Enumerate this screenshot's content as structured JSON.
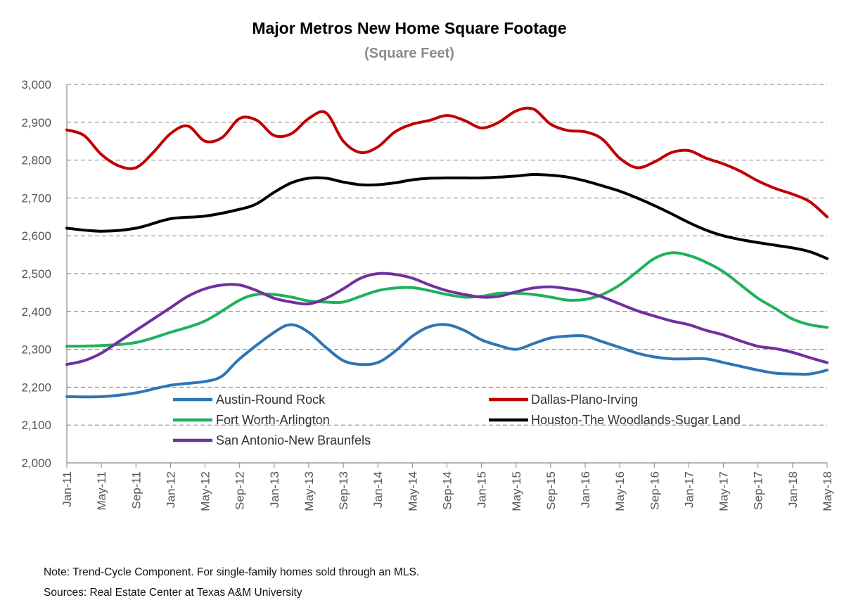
{
  "chart_data": {
    "type": "line",
    "title": "Major Metros New Home Square Footage",
    "subtitle": "(Square Feet)",
    "xlabel": "",
    "ylabel": "",
    "ylim": [
      2000,
      3000
    ],
    "yticks": [
      2000,
      2100,
      2200,
      2300,
      2400,
      2500,
      2600,
      2700,
      2800,
      2900,
      3000
    ],
    "ytick_labels": [
      "2,000",
      "2,100",
      "2,200",
      "2,300",
      "2,400",
      "2,500",
      "2,600",
      "2,700",
      "2,800",
      "2,900",
      "3,000"
    ],
    "x_tick_labels": [
      "Jan-11",
      "May-11",
      "Sep-11",
      "Jan-12",
      "May-12",
      "Sep-12",
      "Jan-13",
      "May-13",
      "Sep-13",
      "Jan-14",
      "May-14",
      "Sep-14",
      "Jan-15",
      "May-15",
      "Sep-15",
      "Jan-16",
      "May-16",
      "Sep-16",
      "Jan-17",
      "May-17",
      "Sep-17",
      "Jan-18",
      "May-18"
    ],
    "grid": "horizontal dashed",
    "legend_position": "bottom-center inside plot",
    "series": [
      {
        "name": "Austin-Round Rock",
        "color": "#2e75b6",
        "x": [
          "Jan-11",
          "May-11",
          "Sep-11",
          "Jan-12",
          "May-12",
          "Jul-12",
          "Sep-12",
          "Jan-13",
          "Mar-13",
          "May-13",
          "Jul-13",
          "Sep-13",
          "Nov-13",
          "Jan-14",
          "Mar-14",
          "May-14",
          "Jul-14",
          "Sep-14",
          "Nov-14",
          "Jan-15",
          "Mar-15",
          "May-15",
          "Jul-15",
          "Sep-15",
          "Nov-15",
          "Jan-16",
          "Mar-16",
          "May-16",
          "Jul-16",
          "Sep-16",
          "Nov-16",
          "Jan-17",
          "Mar-17",
          "May-17",
          "Jul-17",
          "Sep-17",
          "Nov-17",
          "Jan-18",
          "Mar-18",
          "May-18"
        ],
        "values": [
          2175,
          2175,
          2185,
          2205,
          2215,
          2230,
          2275,
          2345,
          2365,
          2345,
          2305,
          2270,
          2260,
          2265,
          2295,
          2335,
          2360,
          2365,
          2350,
          2325,
          2310,
          2300,
          2315,
          2330,
          2335,
          2335,
          2320,
          2305,
          2290,
          2280,
          2275,
          2275,
          2275,
          2265,
          2255,
          2245,
          2237,
          2235,
          2235,
          2245
        ]
      },
      {
        "name": "Dallas-Plano-Irving",
        "color": "#c00000",
        "x": [
          "Jan-11",
          "Mar-11",
          "May-11",
          "Jul-11",
          "Sep-11",
          "Nov-11",
          "Jan-12",
          "Mar-12",
          "May-12",
          "Jul-12",
          "Sep-12",
          "Nov-12",
          "Jan-13",
          "Mar-13",
          "May-13",
          "Jul-13",
          "Sep-13",
          "Nov-13",
          "Jan-14",
          "Mar-14",
          "May-14",
          "Jul-14",
          "Sep-14",
          "Nov-14",
          "Jan-15",
          "Mar-15",
          "May-15",
          "Jul-15",
          "Sep-15",
          "Nov-15",
          "Jan-16",
          "Mar-16",
          "May-16",
          "Jul-16",
          "Sep-16",
          "Nov-16",
          "Jan-17",
          "Mar-17",
          "May-17",
          "Jul-17",
          "Sep-17",
          "Nov-17",
          "Jan-18",
          "Mar-18",
          "May-18"
        ],
        "values": [
          2880,
          2865,
          2815,
          2785,
          2780,
          2820,
          2870,
          2890,
          2850,
          2860,
          2910,
          2905,
          2865,
          2870,
          2910,
          2925,
          2850,
          2820,
          2835,
          2875,
          2895,
          2905,
          2918,
          2905,
          2885,
          2900,
          2930,
          2935,
          2895,
          2878,
          2875,
          2855,
          2805,
          2780,
          2795,
          2820,
          2825,
          2805,
          2790,
          2770,
          2745,
          2725,
          2710,
          2690,
          2650
        ]
      },
      {
        "name": "Fort Worth-Arlington",
        "color": "#1fb25a",
        "x": [
          "Jan-11",
          "May-11",
          "Sep-11",
          "Jan-12",
          "May-12",
          "Sep-12",
          "Nov-12",
          "Jan-13",
          "Mar-13",
          "May-13",
          "Jul-13",
          "Sep-13",
          "Nov-13",
          "Jan-14",
          "Mar-14",
          "May-14",
          "Jul-14",
          "Sep-14",
          "Nov-14",
          "Jan-15",
          "Mar-15",
          "May-15",
          "Jul-15",
          "Sep-15",
          "Nov-15",
          "Jan-16",
          "Mar-16",
          "May-16",
          "Jul-16",
          "Sep-16",
          "Nov-16",
          "Jan-17",
          "Mar-17",
          "May-17",
          "Jul-17",
          "Sep-17",
          "Nov-17",
          "Jan-18",
          "Mar-18",
          "May-18"
        ],
        "values": [
          2308,
          2310,
          2318,
          2345,
          2375,
          2430,
          2445,
          2445,
          2438,
          2428,
          2425,
          2425,
          2440,
          2455,
          2462,
          2463,
          2455,
          2445,
          2438,
          2440,
          2448,
          2448,
          2445,
          2438,
          2430,
          2432,
          2445,
          2470,
          2505,
          2540,
          2555,
          2548,
          2530,
          2505,
          2470,
          2435,
          2408,
          2380,
          2365,
          2358
        ]
      },
      {
        "name": "Houston-The Woodlands-Sugar Land",
        "color": "#000000",
        "x": [
          "Jan-11",
          "May-11",
          "Sep-11",
          "Jan-12",
          "May-12",
          "Sep-12",
          "Nov-12",
          "Jan-13",
          "Mar-13",
          "May-13",
          "Jul-13",
          "Sep-13",
          "Nov-13",
          "Jan-14",
          "Mar-14",
          "May-14",
          "Jul-14",
          "Sep-14",
          "Nov-14",
          "Jan-15",
          "Mar-15",
          "May-15",
          "Jul-15",
          "Sep-15",
          "Nov-15",
          "Jan-16",
          "Mar-16",
          "May-16",
          "Jul-16",
          "Sep-16",
          "Nov-16",
          "Jan-17",
          "Mar-17",
          "May-17",
          "Jul-17",
          "Sep-17",
          "Nov-17",
          "Jan-18",
          "Mar-18",
          "May-18"
        ],
        "values": [
          2620,
          2612,
          2620,
          2645,
          2652,
          2670,
          2685,
          2715,
          2740,
          2752,
          2752,
          2742,
          2735,
          2735,
          2740,
          2748,
          2752,
          2753,
          2753,
          2753,
          2755,
          2758,
          2762,
          2760,
          2755,
          2745,
          2732,
          2718,
          2700,
          2680,
          2658,
          2635,
          2615,
          2600,
          2590,
          2582,
          2575,
          2568,
          2558,
          2540
        ]
      },
      {
        "name": "San Antonio-New Braunfels",
        "color": "#7030a0",
        "x": [
          "Jan-11",
          "Mar-11",
          "May-11",
          "Jul-11",
          "Sep-11",
          "Nov-11",
          "Jan-12",
          "Mar-12",
          "May-12",
          "Jul-12",
          "Sep-12",
          "Nov-12",
          "Jan-13",
          "Mar-13",
          "May-13",
          "Jul-13",
          "Sep-13",
          "Nov-13",
          "Jan-14",
          "Mar-14",
          "May-14",
          "Jul-14",
          "Sep-14",
          "Nov-14",
          "Jan-15",
          "Mar-15",
          "May-15",
          "Jul-15",
          "Sep-15",
          "Nov-15",
          "Jan-16",
          "Mar-16",
          "May-16",
          "Jul-16",
          "Sep-16",
          "Nov-16",
          "Jan-17",
          "Mar-17",
          "May-17",
          "Jul-17",
          "Sep-17",
          "Nov-17",
          "Jan-18",
          "Mar-18",
          "May-18"
        ],
        "values": [
          2260,
          2270,
          2290,
          2320,
          2350,
          2380,
          2410,
          2440,
          2460,
          2470,
          2470,
          2455,
          2435,
          2425,
          2420,
          2435,
          2460,
          2488,
          2500,
          2498,
          2488,
          2470,
          2455,
          2445,
          2438,
          2440,
          2452,
          2462,
          2465,
          2460,
          2452,
          2438,
          2420,
          2402,
          2388,
          2375,
          2365,
          2350,
          2338,
          2322,
          2308,
          2302,
          2292,
          2278,
          2265
        ]
      }
    ]
  },
  "legend": {
    "austin": "Austin-Round Rock",
    "dallas": "Dallas-Plano-Irving",
    "fortworth": "Fort Worth-Arlington",
    "houston": "Houston-The Woodlands-Sugar Land",
    "sanantonio": "San Antonio-New Braunfels"
  },
  "notes": {
    "note": "Note: Trend-Cycle Component. For single-family homes sold through an MLS.",
    "sources": "Sources: Real Estate Center at Texas A&M University"
  }
}
